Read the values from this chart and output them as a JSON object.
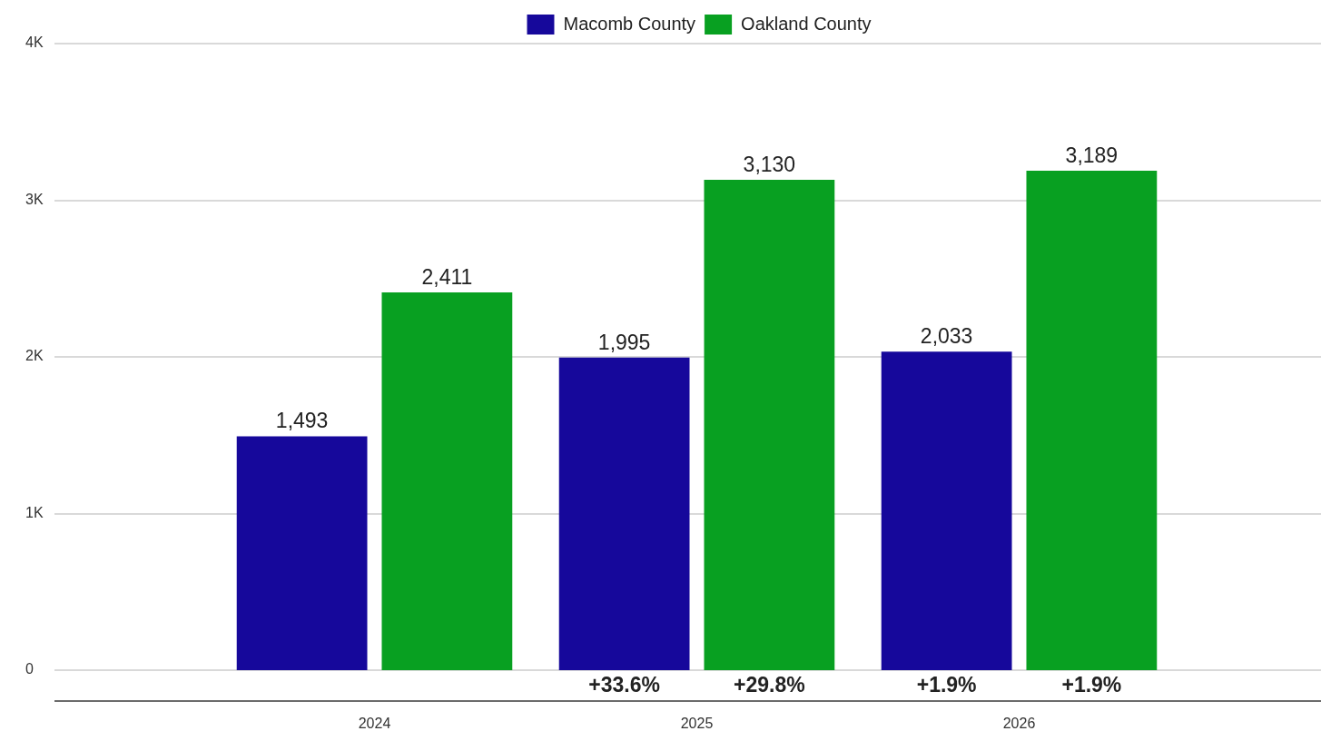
{
  "chart_data": {
    "type": "bar",
    "categories": [
      "2024",
      "2025",
      "2026"
    ],
    "series": [
      {
        "name": "Macomb County",
        "color": "#16089b",
        "values": [
          1493,
          1995,
          2033
        ],
        "value_labels": [
          "1,493",
          "1,995",
          "2,033"
        ]
      },
      {
        "name": "Oakland County",
        "color": "#08a021",
        "values": [
          2411,
          3130,
          3189
        ],
        "value_labels": [
          "2,411",
          "3,130",
          "3,189"
        ]
      }
    ],
    "ylim": [
      0,
      4000
    ],
    "yticks": [
      0,
      {
        "value": 1000,
        "label": "1K"
      },
      {
        "value": 2000,
        "label": "2K"
      },
      {
        "value": 3000,
        "label": "3K"
      },
      {
        "value": 4000,
        "label": "4K"
      }
    ],
    "grid": "y",
    "legend": "top",
    "annotations": [
      "+33.6%",
      "+29.8%",
      "+1.9%",
      "+1.9%"
    ]
  }
}
